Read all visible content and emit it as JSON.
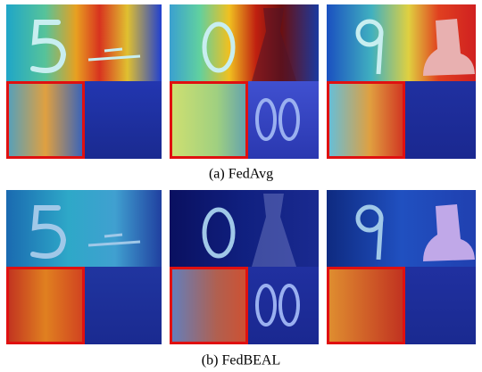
{
  "figure": {
    "rows": [
      {
        "caption": "(a) FedAvg"
      },
      {
        "caption": "(b) FedBEAL"
      }
    ]
  }
}
